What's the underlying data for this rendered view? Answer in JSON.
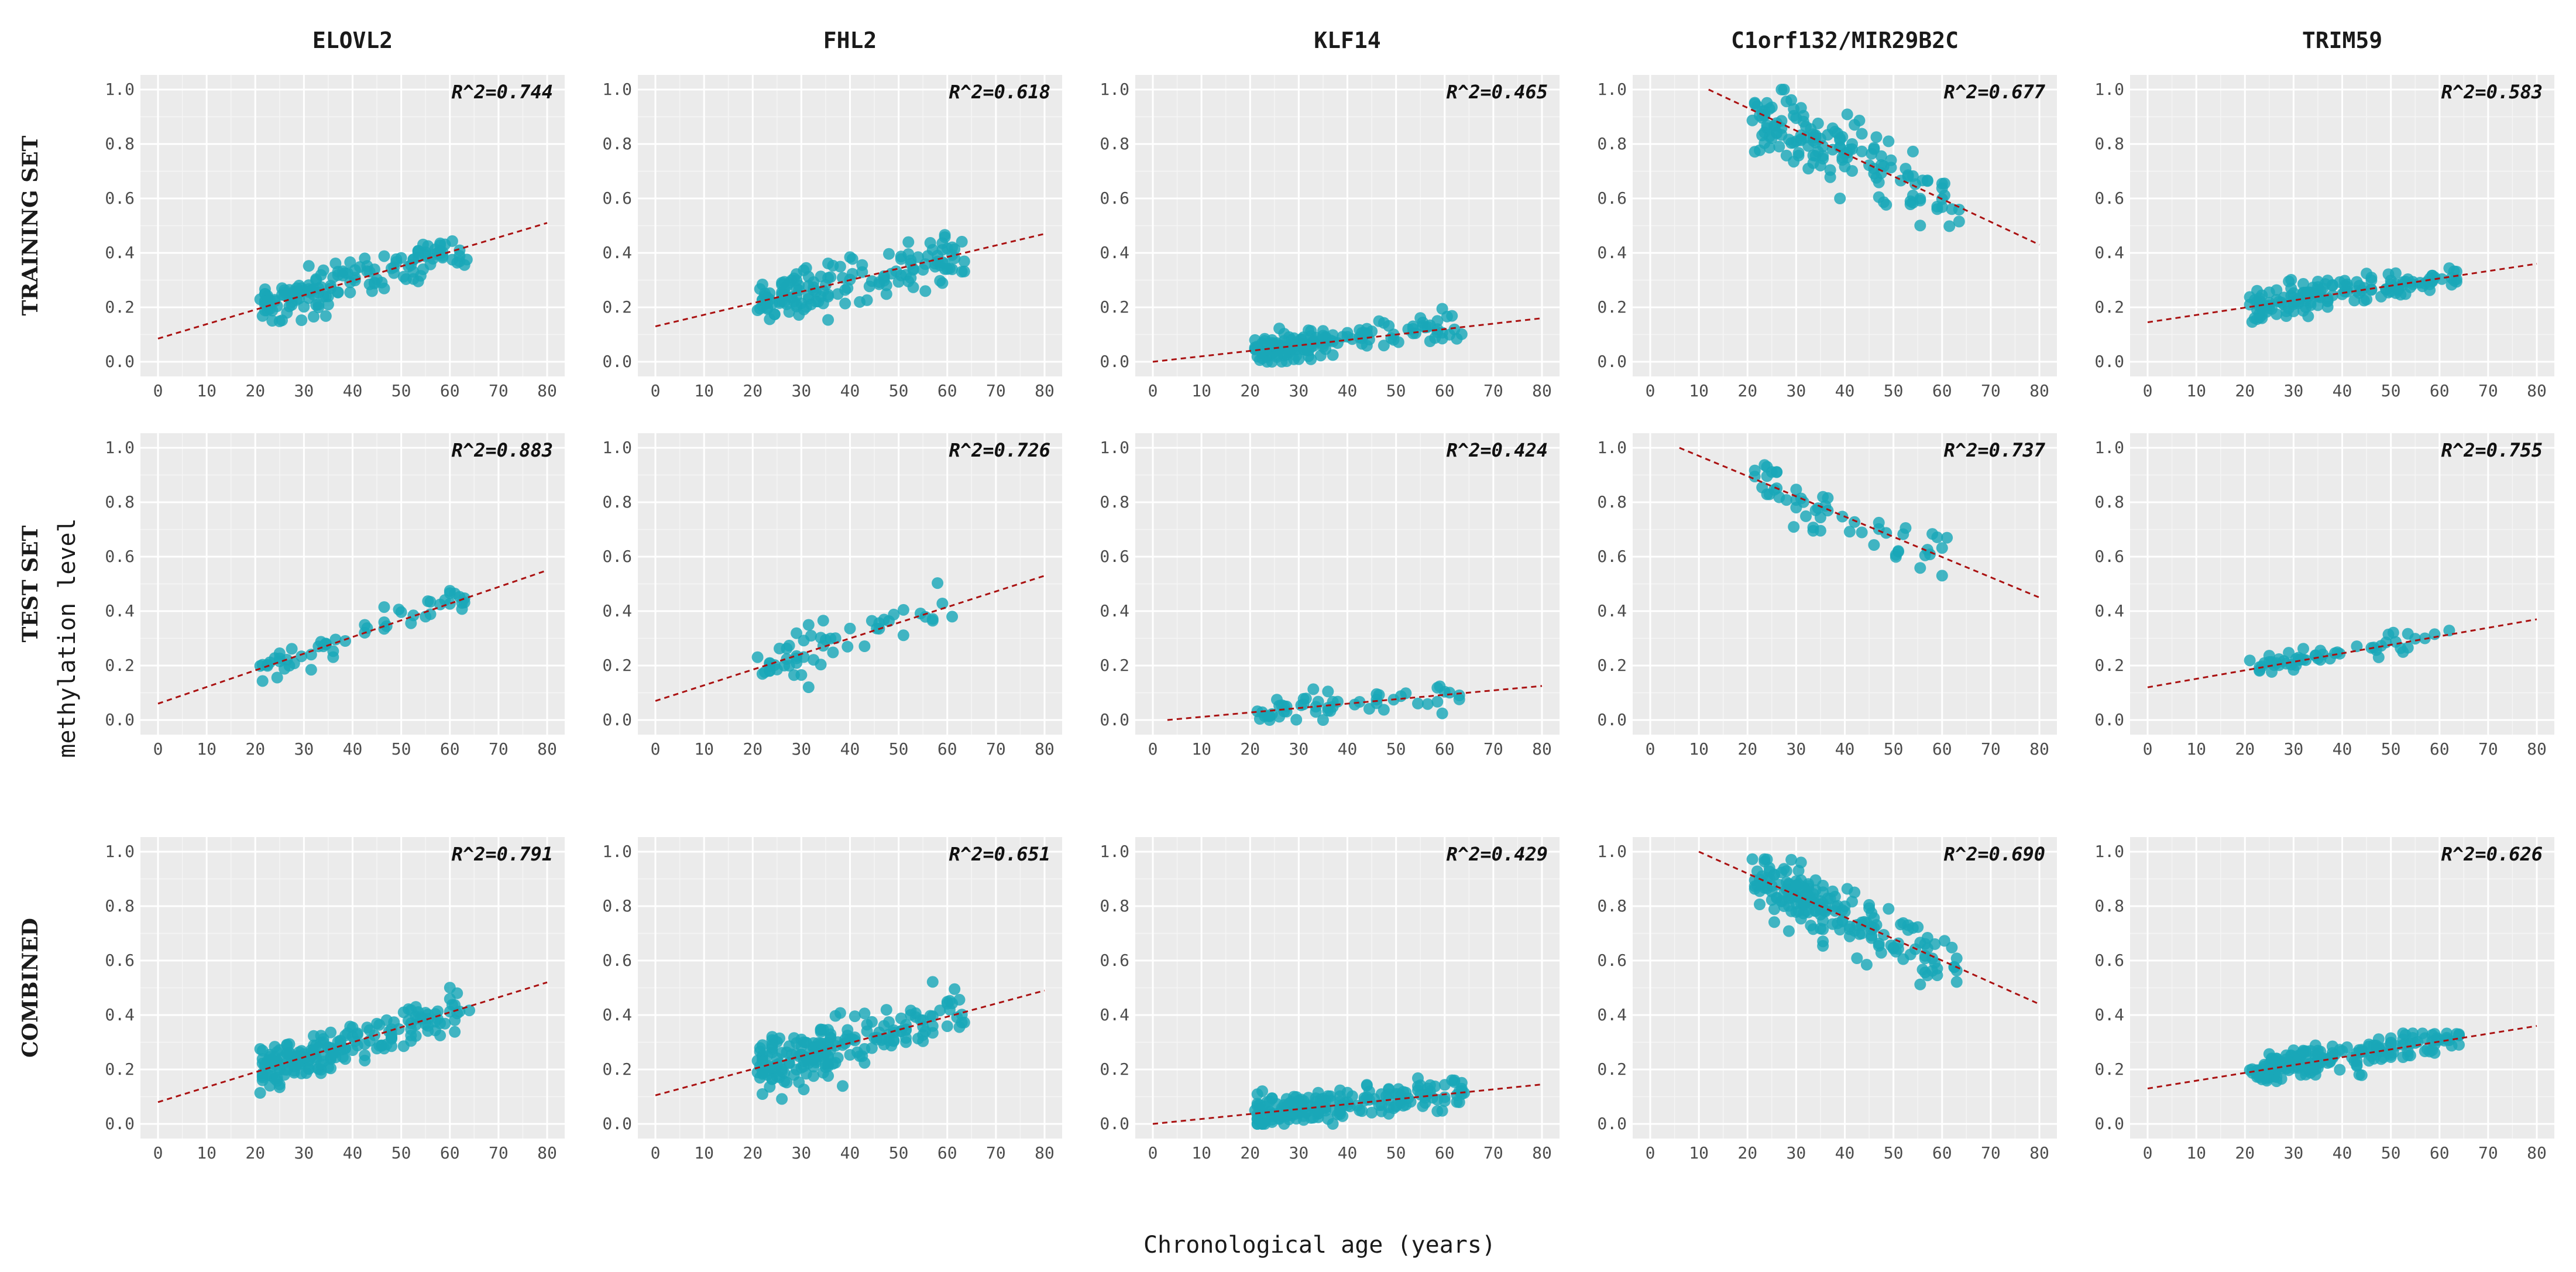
{
  "chart_data": {
    "type": "scatter",
    "x_axis_title": "Chronological age (years)",
    "y_axis_title": "methylation level",
    "genes": [
      "ELOVL2",
      "FHL2",
      "KLF14",
      "C1orf132/MIR29B2C",
      "TRIM59"
    ],
    "rows": [
      "TRAINING SET",
      "TEST SET",
      "COMBINED"
    ],
    "xlim": [
      0,
      80
    ],
    "ylim": [
      0,
      1
    ],
    "xticks": [
      "0",
      "10",
      "20",
      "30",
      "40",
      "50",
      "60",
      "70",
      "80"
    ],
    "yticks": [
      "0.0",
      "0.2",
      "0.4",
      "0.6",
      "0.8",
      "1.0"
    ],
    "point_color": "#1aa7b8",
    "trend_color": "#aa1111",
    "panel_background": "#ebebeb",
    "age_range": [
      21,
      64
    ],
    "panels": [
      {
        "row": "TRAINING SET",
        "gene": "ELOVL2",
        "r2_label": "R^2=0.744",
        "fit": {
          "x0": 0,
          "y0": 0.085,
          "x1": 80,
          "y1": 0.51
        },
        "n_points": 150,
        "spread": 0.04
      },
      {
        "row": "TRAINING SET",
        "gene": "FHL2",
        "r2_label": "R^2=0.618",
        "fit": {
          "x0": 0,
          "y0": 0.13,
          "x1": 80,
          "y1": 0.47
        },
        "n_points": 150,
        "spread": 0.045
      },
      {
        "row": "TRAINING SET",
        "gene": "KLF14",
        "r2_label": "R^2=0.465",
        "fit": {
          "x0": 0,
          "y0": 0.0,
          "x1": 80,
          "y1": 0.16
        },
        "n_points": 150,
        "spread": 0.028
      },
      {
        "row": "TRAINING SET",
        "gene": "C1orf132/MIR29B2C",
        "r2_label": "R^2=0.677",
        "fit": {
          "x0": 12,
          "y0": 1.0,
          "x1": 80,
          "y1": 0.43
        },
        "n_points": 150,
        "spread": 0.065
      },
      {
        "row": "TRAINING SET",
        "gene": "TRIM59",
        "r2_label": "R^2=0.583",
        "fit": {
          "x0": 0,
          "y0": 0.145,
          "x1": 80,
          "y1": 0.36
        },
        "n_points": 150,
        "spread": 0.03
      },
      {
        "row": "TEST SET",
        "gene": "ELOVL2",
        "r2_label": "R^2=0.883",
        "fit": {
          "x0": 0,
          "y0": 0.06,
          "x1": 80,
          "y1": 0.55
        },
        "n_points": 55,
        "spread": 0.03
      },
      {
        "row": "TEST SET",
        "gene": "FHL2",
        "r2_label": "R^2=0.726",
        "fit": {
          "x0": 0,
          "y0": 0.07,
          "x1": 80,
          "y1": 0.53
        },
        "n_points": 55,
        "spread": 0.045
      },
      {
        "row": "TEST SET",
        "gene": "KLF14",
        "r2_label": "R^2=0.424",
        "fit": {
          "x0": 3,
          "y0": 0.0,
          "x1": 80,
          "y1": 0.125
        },
        "n_points": 55,
        "spread": 0.025
      },
      {
        "row": "TEST SET",
        "gene": "C1orf132/MIR29B2C",
        "r2_label": "R^2=0.737",
        "fit": {
          "x0": 6,
          "y0": 1.0,
          "x1": 80,
          "y1": 0.45
        },
        "n_points": 55,
        "spread": 0.05
      },
      {
        "row": "TEST SET",
        "gene": "TRIM59",
        "r2_label": "R^2=0.755",
        "fit": {
          "x0": 0,
          "y0": 0.12,
          "x1": 80,
          "y1": 0.37
        },
        "n_points": 55,
        "spread": 0.022
      },
      {
        "row": "COMBINED",
        "gene": "ELOVL2",
        "r2_label": "R^2=0.791",
        "fit": {
          "x0": 0,
          "y0": 0.08,
          "x1": 80,
          "y1": 0.52
        },
        "n_points": 200,
        "spread": 0.038
      },
      {
        "row": "COMBINED",
        "gene": "FHL2",
        "r2_label": "R^2=0.651",
        "fit": {
          "x0": 0,
          "y0": 0.105,
          "x1": 80,
          "y1": 0.49
        },
        "n_points": 200,
        "spread": 0.045
      },
      {
        "row": "COMBINED",
        "gene": "KLF14",
        "r2_label": "R^2=0.429",
        "fit": {
          "x0": 0,
          "y0": 0.0,
          "x1": 80,
          "y1": 0.145
        },
        "n_points": 200,
        "spread": 0.028
      },
      {
        "row": "COMBINED",
        "gene": "C1orf132/MIR29B2C",
        "r2_label": "R^2=0.690",
        "fit": {
          "x0": 10,
          "y0": 1.0,
          "x1": 80,
          "y1": 0.44
        },
        "n_points": 200,
        "spread": 0.062
      },
      {
        "row": "COMBINED",
        "gene": "TRIM59",
        "r2_label": "R^2=0.626",
        "fit": {
          "x0": 0,
          "y0": 0.13,
          "x1": 80,
          "y1": 0.36
        },
        "n_points": 200,
        "spread": 0.03
      }
    ]
  }
}
